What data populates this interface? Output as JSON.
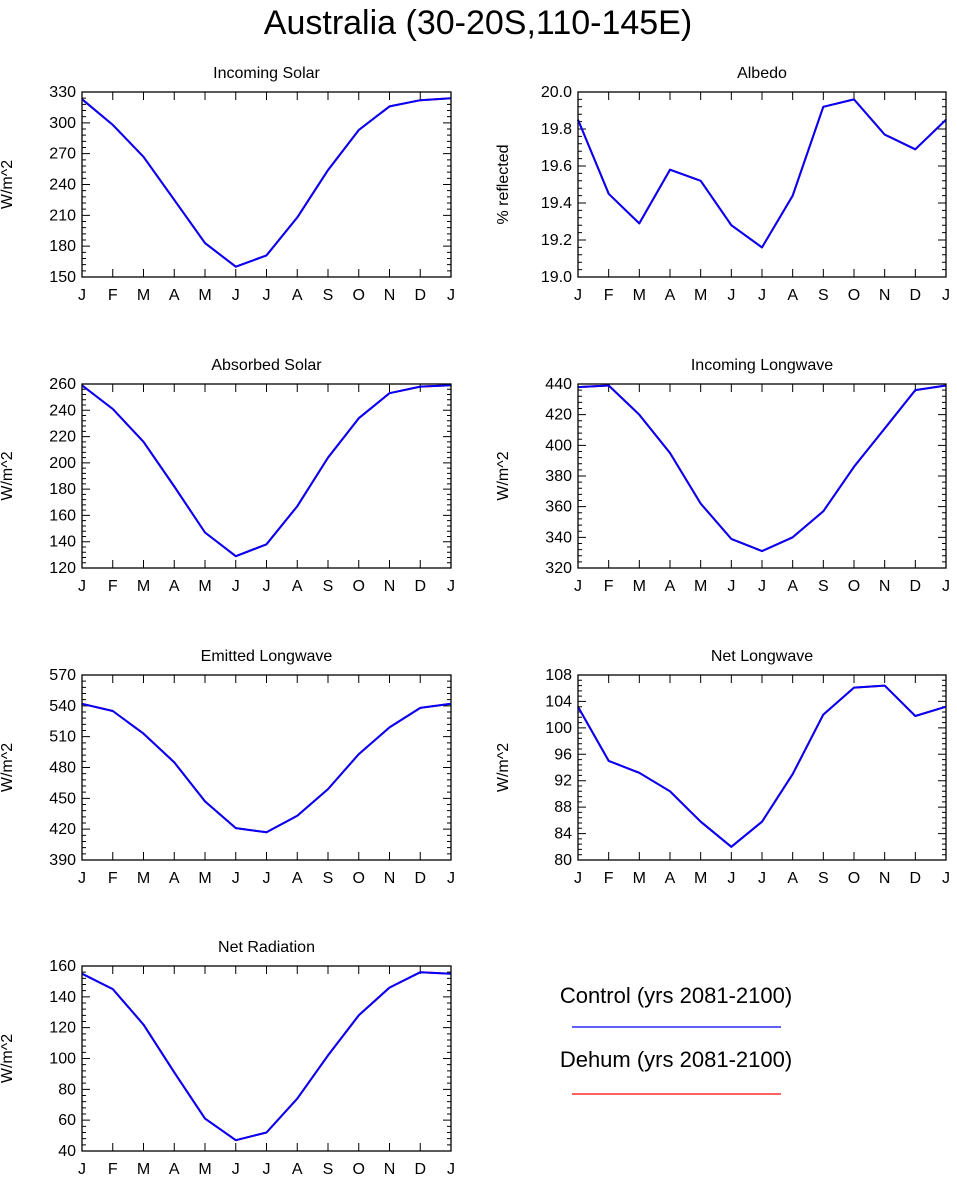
{
  "title": "Australia (30-20S,110-145E)",
  "legend": {
    "entries": [
      {
        "label": "Control (yrs 2081-2100)",
        "color": "#0000ff"
      },
      {
        "label": "Dehum (yrs 2081-2100)",
        "color": "#ff0000"
      }
    ]
  },
  "chart_data": [
    {
      "type": "line",
      "title": "Incoming Solar",
      "ylabel": "W/m^2",
      "xlabel": "",
      "categories": [
        "J",
        "F",
        "M",
        "A",
        "M",
        "J",
        "J",
        "A",
        "S",
        "O",
        "N",
        "D",
        "J"
      ],
      "ylim": [
        150,
        330
      ],
      "yticks": [
        150,
        180,
        210,
        240,
        270,
        300,
        330
      ],
      "series": [
        {
          "name": "Dehum (yrs 2081-2100)",
          "color": "#ff0000",
          "values": [
            323,
            298,
            267,
            225,
            183,
            160,
            171,
            208,
            254,
            293,
            316,
            322,
            324
          ]
        },
        {
          "name": "Control (yrs 2081-2100)",
          "color": "#0000ff",
          "values": [
            323,
            298,
            267,
            225,
            183,
            160,
            171,
            208,
            254,
            293,
            316,
            322,
            324
          ]
        }
      ]
    },
    {
      "type": "line",
      "title": "Albedo",
      "ylabel": "% reflected",
      "xlabel": "",
      "categories": [
        "J",
        "F",
        "M",
        "A",
        "M",
        "J",
        "J",
        "A",
        "S",
        "O",
        "N",
        "D",
        "J"
      ],
      "ylim": [
        19.0,
        20.0
      ],
      "yticks": [
        "19.0",
        "19.2",
        "19.4",
        "19.6",
        "19.8",
        "20.0"
      ],
      "series": [
        {
          "name": "Dehum (yrs 2081-2100)",
          "color": "#ff0000",
          "values": [
            19.85,
            19.45,
            19.29,
            19.58,
            19.52,
            19.28,
            19.16,
            19.44,
            19.92,
            19.96,
            19.77,
            19.69,
            19.85
          ]
        },
        {
          "name": "Control (yrs 2081-2100)",
          "color": "#0000ff",
          "values": [
            19.85,
            19.45,
            19.29,
            19.58,
            19.52,
            19.28,
            19.16,
            19.44,
            19.92,
            19.96,
            19.77,
            19.69,
            19.85
          ]
        }
      ]
    },
    {
      "type": "line",
      "title": "Absorbed Solar",
      "ylabel": "W/m^2",
      "xlabel": "",
      "categories": [
        "J",
        "F",
        "M",
        "A",
        "M",
        "J",
        "J",
        "A",
        "S",
        "O",
        "N",
        "D",
        "J"
      ],
      "ylim": [
        120,
        260
      ],
      "yticks": [
        120,
        140,
        160,
        180,
        200,
        220,
        240,
        260
      ],
      "series": [
        {
          "name": "Dehum (yrs 2081-2100)",
          "color": "#ff0000",
          "values": [
            259,
            241,
            216,
            182,
            147,
            129,
            138,
            167,
            204,
            234,
            253,
            258,
            259
          ]
        },
        {
          "name": "Control (yrs 2081-2100)",
          "color": "#0000ff",
          "values": [
            259,
            241,
            216,
            182,
            147,
            129,
            138,
            167,
            204,
            234,
            253,
            258,
            259
          ]
        }
      ]
    },
    {
      "type": "line",
      "title": "Incoming Longwave",
      "ylabel": "W/m^2",
      "xlabel": "",
      "categories": [
        "J",
        "F",
        "M",
        "A",
        "M",
        "J",
        "J",
        "A",
        "S",
        "O",
        "N",
        "D",
        "J"
      ],
      "ylim": [
        320,
        440
      ],
      "yticks": [
        320,
        340,
        360,
        380,
        400,
        420,
        440
      ],
      "series": [
        {
          "name": "Dehum (yrs 2081-2100)",
          "color": "#ff0000",
          "values": [
            438,
            439,
            420,
            395,
            362,
            339,
            331,
            340,
            357,
            386,
            411,
            436,
            439
          ]
        },
        {
          "name": "Control (yrs 2081-2100)",
          "color": "#0000ff",
          "values": [
            438,
            439,
            420,
            395,
            362,
            339,
            331,
            340,
            357,
            386,
            411,
            436,
            439
          ]
        }
      ]
    },
    {
      "type": "line",
      "title": "Emitted Longwave",
      "ylabel": "W/m^2",
      "xlabel": "",
      "categories": [
        "J",
        "F",
        "M",
        "A",
        "M",
        "J",
        "J",
        "A",
        "S",
        "O",
        "N",
        "D",
        "J"
      ],
      "ylim": [
        390,
        570
      ],
      "yticks": [
        390,
        420,
        450,
        480,
        510,
        540,
        570
      ],
      "series": [
        {
          "name": "Dehum (yrs 2081-2100)",
          "color": "#ff0000",
          "values": [
            542,
            535,
            513,
            485,
            447,
            421,
            417,
            433,
            459,
            493,
            519,
            538,
            542
          ]
        },
        {
          "name": "Control (yrs 2081-2100)",
          "color": "#0000ff",
          "values": [
            542,
            535,
            513,
            485,
            447,
            421,
            417,
            433,
            459,
            493,
            519,
            538,
            542
          ]
        }
      ]
    },
    {
      "type": "line",
      "title": "Net Longwave",
      "ylabel": "W/m^2",
      "xlabel": "",
      "categories": [
        "J",
        "F",
        "M",
        "A",
        "M",
        "J",
        "J",
        "A",
        "S",
        "O",
        "N",
        "D",
        "J"
      ],
      "ylim": [
        80,
        108
      ],
      "yticks": [
        80,
        84,
        88,
        92,
        96,
        100,
        104,
        108
      ],
      "series": [
        {
          "name": "Dehum (yrs 2081-2100)",
          "color": "#ff0000",
          "values": [
            103.2,
            95.0,
            93.2,
            90.4,
            85.8,
            82.0,
            85.8,
            93.0,
            102.0,
            106.1,
            106.4,
            101.8,
            103.2
          ]
        },
        {
          "name": "Control (yrs 2081-2100)",
          "color": "#0000ff",
          "values": [
            103.2,
            95.0,
            93.2,
            90.4,
            85.8,
            82.0,
            85.8,
            93.0,
            102.0,
            106.1,
            106.4,
            101.8,
            103.2
          ]
        }
      ]
    },
    {
      "type": "line",
      "title": "Net Radiation",
      "ylabel": "W/m^2",
      "xlabel": "",
      "categories": [
        "J",
        "F",
        "M",
        "A",
        "M",
        "J",
        "J",
        "A",
        "S",
        "O",
        "N",
        "D",
        "J"
      ],
      "ylim": [
        40,
        160
      ],
      "yticks": [
        40,
        60,
        80,
        100,
        120,
        140,
        160
      ],
      "series": [
        {
          "name": "Dehum (yrs 2081-2100)",
          "color": "#ff0000",
          "values": [
            155,
            145,
            122,
            91,
            61,
            47,
            52,
            74,
            102,
            128,
            146,
            156,
            155
          ]
        },
        {
          "name": "Control (yrs 2081-2100)",
          "color": "#0000ff",
          "values": [
            155,
            145,
            122,
            91,
            61,
            47,
            52,
            74,
            102,
            128,
            146,
            156,
            155
          ]
        }
      ]
    }
  ]
}
